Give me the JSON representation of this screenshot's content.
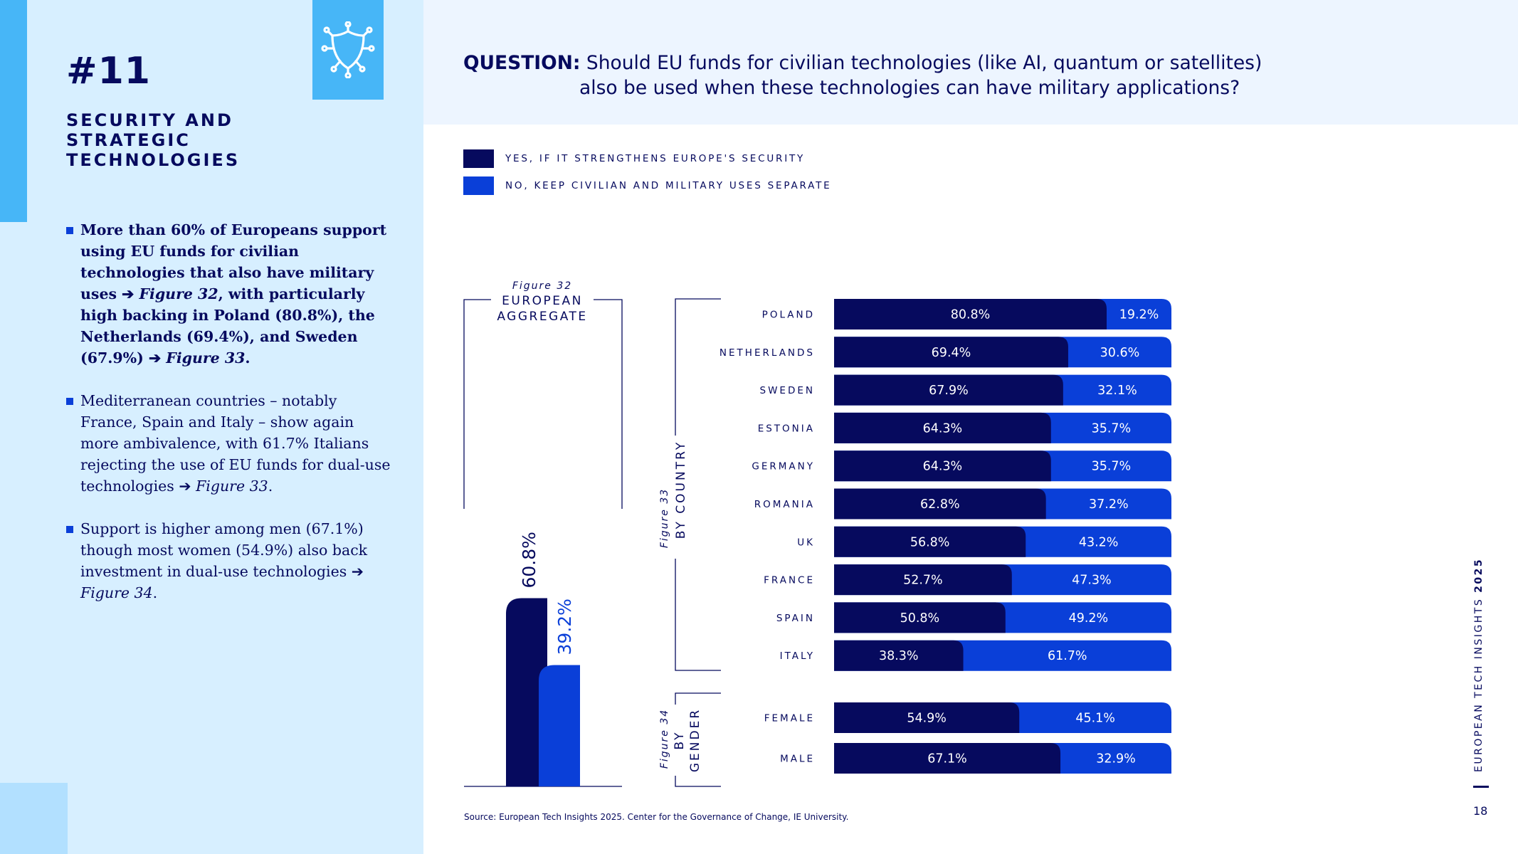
{
  "section": {
    "number": "#11",
    "title": "SECURITY AND STRATEGIC TECHNOLOGIES",
    "icon": "shield-circuit-icon"
  },
  "bullets": [
    {
      "segments": [
        {
          "text": "More than 60% of Europeans support using EU funds for civilian technologies that also have military uses ",
          "italic": false
        },
        {
          "text": "➔ ",
          "italic": false
        },
        {
          "text": "Figure 32",
          "italic": true
        },
        {
          "text": ", with particularly high backing in Poland (80.8%), the Netherlands (69.4%), and Sweden (67.9%) ",
          "italic": false
        },
        {
          "text": "➔ ",
          "italic": false
        },
        {
          "text": "Figure 33",
          "italic": true
        },
        {
          "text": ".",
          "italic": false
        }
      ],
      "bold": true
    },
    {
      "segments": [
        {
          "text": "Mediterranean countries – notably France, Spain and Italy – show again more ambivalence, with 61.7% Italians rejecting the use of EU funds for dual-use technologies ",
          "italic": false
        },
        {
          "text": "➔ ",
          "italic": false
        },
        {
          "text": "Figure 33",
          "italic": true
        },
        {
          "text": ".",
          "italic": false
        }
      ],
      "bold": false
    },
    {
      "segments": [
        {
          "text": "Support is higher among men (67.1%) though most women (54.9%) also back investment in dual-use technologies ",
          "italic": false
        },
        {
          "text": "➔ ",
          "italic": false
        },
        {
          "text": "Figure 34",
          "italic": true
        },
        {
          "text": ".",
          "italic": false
        }
      ],
      "bold": false
    }
  ],
  "question": {
    "label": "QUESTION:",
    "line1": "Should EU funds for civilian technologies (like AI, quantum or satellites)",
    "line2": "also be used when these technologies can have military applications?"
  },
  "legend": [
    {
      "label": "YES, IF IT STRENGTHENS EUROPE'S SECURITY",
      "color": "#060a5e"
    },
    {
      "label": "NO, KEEP CIVILIAN AND MILITARY USES SEPARATE",
      "color": "#0a3fd8"
    }
  ],
  "colors": {
    "yes": "#060a5e",
    "no": "#0a3fd8",
    "panel": "#d7efff",
    "accent": "#47b6f7"
  },
  "chart_data": [
    {
      "type": "bar",
      "figure_label": "Figure 32",
      "title": "EUROPEAN AGGREGATE",
      "series": [
        {
          "name": "YES, IF IT STRENGTHENS EUROPE'S SECURITY",
          "values": [
            60.8
          ],
          "labels": [
            "60.8%"
          ]
        },
        {
          "name": "NO, KEEP CIVILIAN AND MILITARY USES SEPARATE",
          "values": [
            39.2
          ],
          "labels": [
            "39.2%"
          ]
        }
      ]
    },
    {
      "type": "bar",
      "orientation": "horizontal",
      "stacked": true,
      "figure_label": "Figure 33",
      "title": "BY COUNTRY",
      "categories": [
        "POLAND",
        "NETHERLANDS",
        "SWEDEN",
        "ESTONIA",
        "GERMANY",
        "ROMANIA",
        "UK",
        "FRANCE",
        "SPAIN",
        "ITALY"
      ],
      "series": [
        {
          "name": "YES, IF IT STRENGTHENS EUROPE'S SECURITY",
          "values": [
            80.8,
            69.4,
            67.9,
            64.3,
            64.3,
            62.8,
            56.8,
            52.7,
            50.8,
            38.3
          ],
          "labels": [
            "80.8%",
            "69.4%",
            "67.9%",
            "64.3%",
            "64.3%",
            "62.8%",
            "56.8%",
            "52.7%",
            "50.8%",
            "38.3%"
          ]
        },
        {
          "name": "NO, KEEP CIVILIAN AND MILITARY USES SEPARATE",
          "values": [
            19.2,
            30.6,
            32.1,
            35.7,
            35.7,
            37.2,
            43.2,
            47.3,
            49.2,
            61.7
          ],
          "labels": [
            "19.2%",
            "30.6%",
            "32.1%",
            "35.7%",
            "35.7%",
            "37.2%",
            "43.2%",
            "47.3%",
            "49.2%",
            "61.7%"
          ]
        }
      ]
    },
    {
      "type": "bar",
      "orientation": "horizontal",
      "stacked": true,
      "figure_label": "Figure 34",
      "title": "BY GENDER",
      "categories": [
        "FEMALE",
        "MALE"
      ],
      "series": [
        {
          "name": "YES, IF IT STRENGTHENS EUROPE'S SECURITY",
          "values": [
            54.9,
            67.1
          ],
          "labels": [
            "54.9%",
            "67.1%"
          ]
        },
        {
          "name": "NO, KEEP CIVILIAN AND MILITARY USES SEPARATE",
          "values": [
            45.1,
            32.9
          ],
          "labels": [
            "45.1%",
            "32.9%"
          ]
        }
      ]
    }
  ],
  "source": "Source: European Tech Insights 2025. Center for the Governance of Change, IE University.",
  "side_title": {
    "text": "EUROPEAN TECH INSIGHTS ",
    "year": "2025"
  },
  "page_number": "18"
}
